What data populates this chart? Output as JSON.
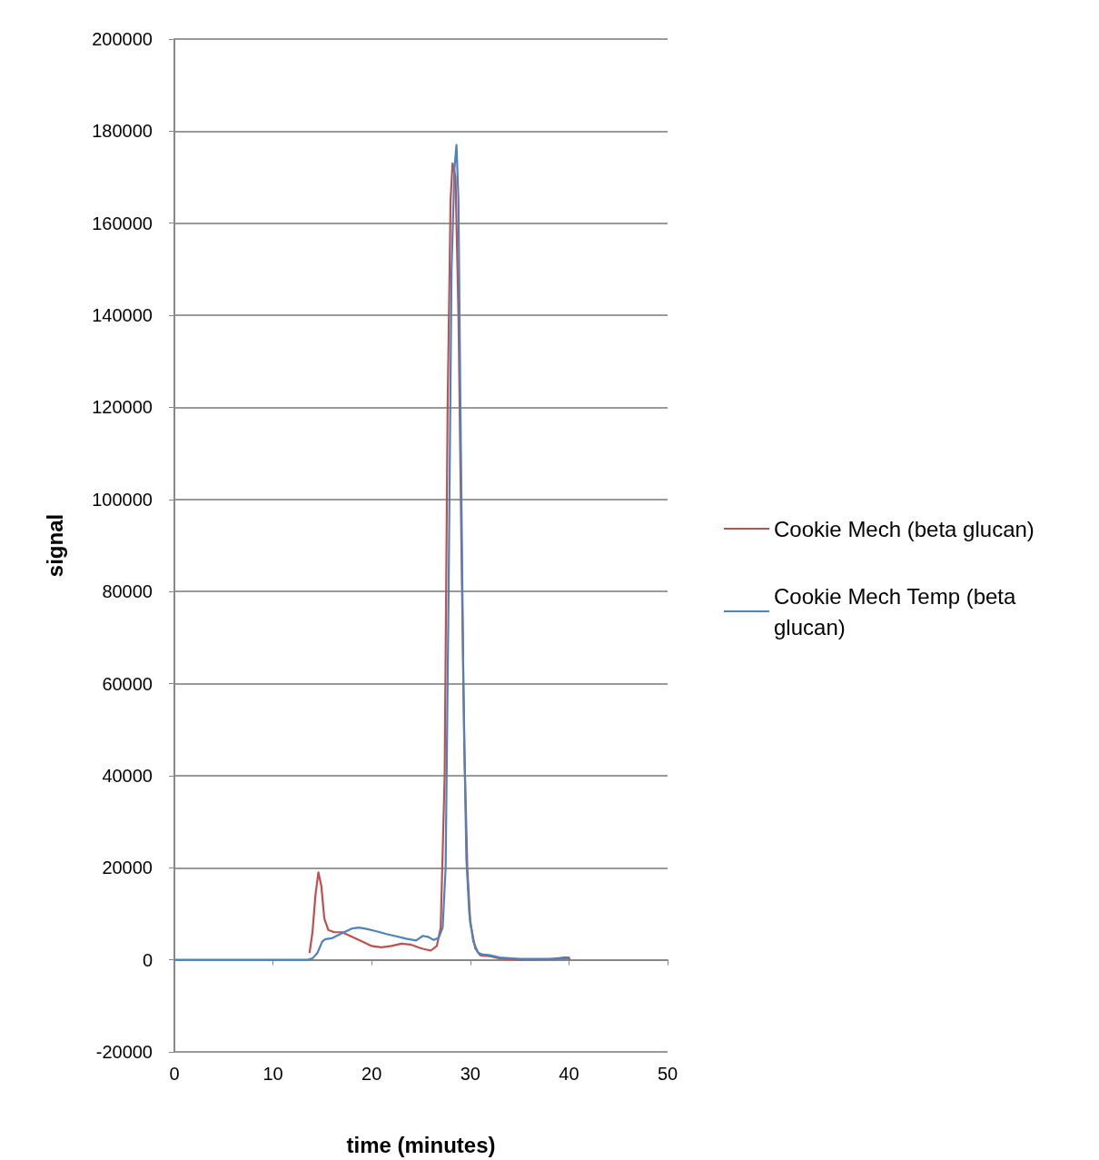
{
  "chart_data": {
    "type": "line",
    "xlabel": "time (minutes)",
    "ylabel": "signal",
    "xlim": [
      0,
      50
    ],
    "xticks": [
      0,
      10,
      20,
      30,
      40,
      50
    ],
    "ylim": [
      -20000,
      200000
    ],
    "yticks": [
      -20000,
      0,
      20000,
      40000,
      60000,
      80000,
      100000,
      120000,
      140000,
      160000,
      180000,
      200000
    ],
    "grid": "y",
    "legend": "right",
    "marker": "none",
    "line_style": "solid",
    "series": [
      {
        "name": "Cookie Mech (beta glucan)",
        "color": "#c0504d",
        "x": [
          13.7,
          14.0,
          14.3,
          14.6,
          14.9,
          15.2,
          15.6,
          16.2,
          17.0,
          18.0,
          19.0,
          20.0,
          21.0,
          22.0,
          23.0,
          24.0,
          25.0,
          26.0,
          26.6,
          27.0,
          27.4,
          27.7,
          28.0,
          28.2,
          28.5,
          28.8,
          29.1,
          29.4,
          29.7,
          30.0,
          30.5,
          31.0,
          32.0,
          33.0,
          35.0,
          38.0,
          39.5,
          40.0,
          40.1
        ],
        "values": [
          1500,
          6000,
          14000,
          19000,
          16000,
          9000,
          6500,
          6000,
          6000,
          5000,
          4000,
          3000,
          2700,
          3000,
          3500,
          3300,
          2500,
          2000,
          3000,
          7000,
          40000,
          120000,
          165000,
          173000,
          170000,
          140000,
          90000,
          45000,
          20000,
          8000,
          2500,
          1000,
          800,
          300,
          0,
          100,
          500,
          500,
          0
        ]
      },
      {
        "name": "Cookie Mech Temp (beta glucan)",
        "color": "#4f81bd",
        "x": [
          0,
          5,
          10,
          13.5,
          14.0,
          14.5,
          15.0,
          15.3,
          16.0,
          17.0,
          18.0,
          18.7,
          19.5,
          20.5,
          21.5,
          22.5,
          23.5,
          24.5,
          25.2,
          25.7,
          26.3,
          26.8,
          27.2,
          27.5,
          27.8,
          28.1,
          28.4,
          28.6,
          28.8,
          29.0,
          29.3,
          29.6,
          29.9,
          30.3,
          30.8,
          31.2,
          32.0,
          33.0,
          35.0,
          38.0,
          40.0
        ],
        "values": [
          0,
          0,
          0,
          0,
          300,
          1500,
          4000,
          4500,
          4700,
          5800,
          6800,
          7000,
          6700,
          6200,
          5600,
          5100,
          4600,
          4200,
          5200,
          5000,
          4300,
          4800,
          7000,
          20000,
          80000,
          150000,
          172000,
          177000,
          165000,
          120000,
          60000,
          22000,
          10000,
          4000,
          1500,
          1200,
          1000,
          500,
          200,
          200,
          300
        ]
      }
    ]
  }
}
